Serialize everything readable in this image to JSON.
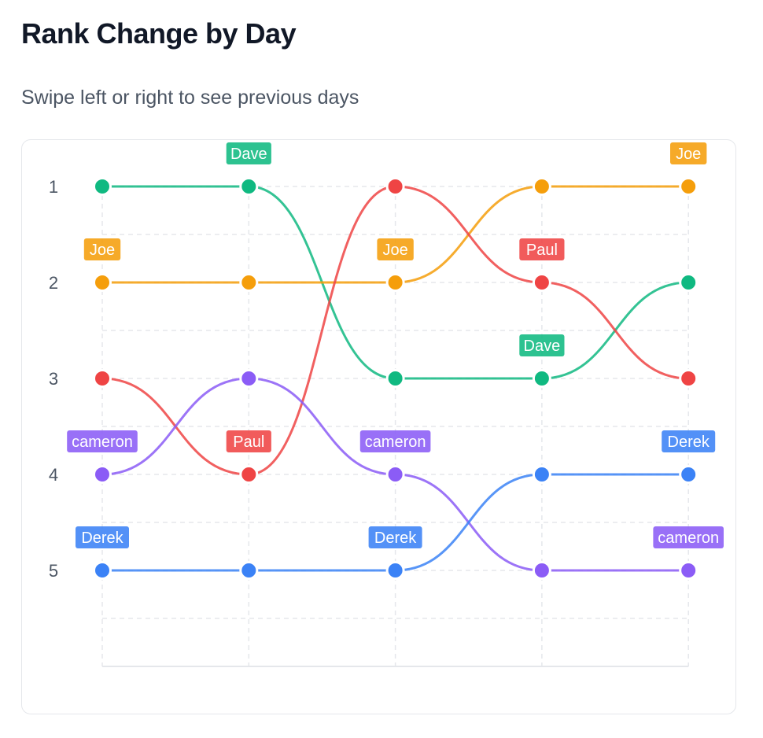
{
  "header": {
    "title": "Rank Change by Day",
    "subtitle": "Swipe left or right to see previous days"
  },
  "chart_data": {
    "type": "line",
    "subtype": "bump",
    "x": [
      1,
      2,
      3,
      4,
      5
    ],
    "y_ticks": [
      "1",
      "2",
      "3",
      "4",
      "5"
    ],
    "ylim": [
      1,
      6
    ],
    "y_inverted": true,
    "grid": true,
    "series": [
      {
        "name": "Dave",
        "color": "#10b981",
        "values": [
          1,
          1,
          3,
          3,
          2
        ],
        "labels_shown_at": [
          2,
          4
        ]
      },
      {
        "name": "Joe",
        "color": "#f59e0b",
        "values": [
          2,
          2,
          2,
          1,
          1
        ],
        "labels_shown_at": [
          1,
          3,
          5
        ]
      },
      {
        "name": "Paul",
        "color": "#ef4444",
        "values": [
          3,
          4,
          1,
          2,
          3
        ],
        "labels_shown_at": [
          2,
          4
        ]
      },
      {
        "name": "cameron",
        "color": "#8b5cf6",
        "values": [
          4,
          3,
          4,
          5,
          5
        ],
        "labels_shown_at": [
          1,
          3,
          5
        ]
      },
      {
        "name": "Derek",
        "color": "#3b82f6",
        "values": [
          5,
          5,
          5,
          4,
          4
        ],
        "labels_shown_at": [
          1,
          3,
          5
        ]
      }
    ]
  }
}
